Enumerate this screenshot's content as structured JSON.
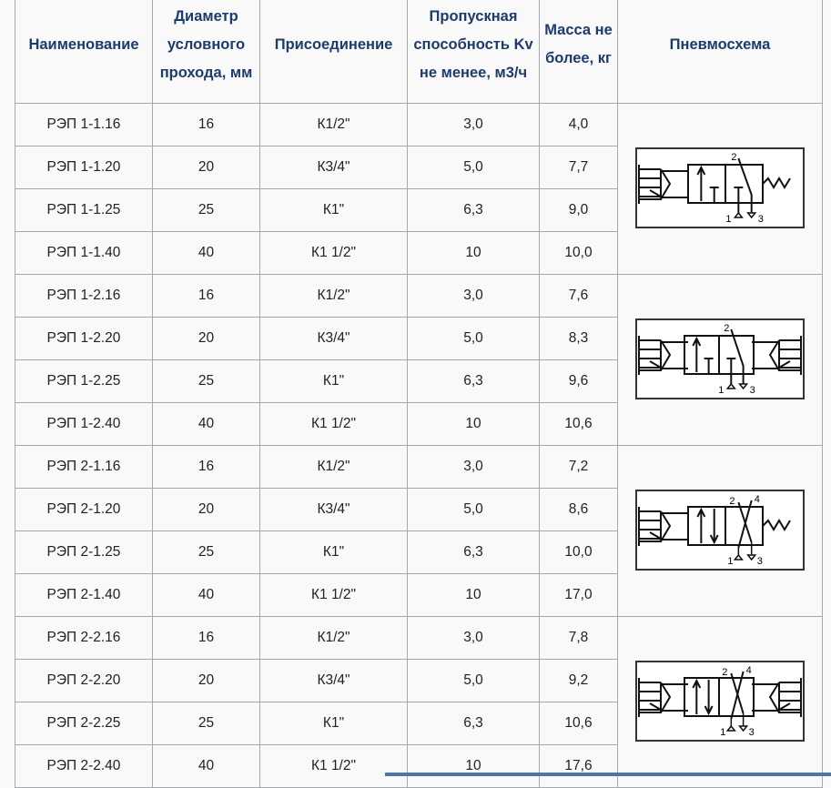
{
  "headers": [
    "Наименование",
    "Диаметр условного прохода, мм",
    "Присоединение",
    "Пропускная способность Kv не менее, м3/ч",
    "Масса не более, кг",
    "Пневмосхема"
  ],
  "rows": [
    [
      "РЭП 1-1.16",
      "16",
      "К1/2\"",
      "3,0",
      "4,0"
    ],
    [
      "РЭП 1-1.20",
      "20",
      "К3/4\"",
      "5,0",
      "7,7"
    ],
    [
      "РЭП 1-1.25",
      "25",
      "К1\"",
      "6,3",
      "9,0"
    ],
    [
      "РЭП 1-1.40",
      "40",
      "К1 1/2\"",
      "10",
      "10,0"
    ],
    [
      "РЭП 1-2.16",
      "16",
      "К1/2\"",
      "3,0",
      "7,6"
    ],
    [
      "РЭП 1-2.20",
      "20",
      "К3/4\"",
      "5,0",
      "8,3"
    ],
    [
      "РЭП 1-2.25",
      "25",
      "К1\"",
      "6,3",
      "9,6"
    ],
    [
      "РЭП 1-2.40",
      "40",
      "К1 1/2\"",
      "10",
      "10,6"
    ],
    [
      "РЭП 2-1.16",
      "16",
      "К1/2\"",
      "3,0",
      "7,2"
    ],
    [
      "РЭП 2-1.20",
      "20",
      "К3/4\"",
      "5,0",
      "8,6"
    ],
    [
      "РЭП 2-1.25",
      "25",
      "К1\"",
      "6,3",
      "10,0"
    ],
    [
      "РЭП 2-1.40",
      "40",
      "К1 1/2\"",
      "10",
      "17,0"
    ],
    [
      "РЭП 2-2.16",
      "16",
      "К1/2\"",
      "3,0",
      "7,8"
    ],
    [
      "РЭП 2-2.20",
      "20",
      "К3/4\"",
      "5,0",
      "9,2"
    ],
    [
      "РЭП 2-2.25",
      "25",
      "К1\"",
      "6,3",
      "10,6"
    ],
    [
      "РЭП 2-2.40",
      "40",
      "К1 1/2\"",
      "10",
      "17,6"
    ]
  ],
  "schemes": [
    {
      "type": "3/2-spring",
      "ports": [
        "2",
        "1",
        "3"
      ]
    },
    {
      "type": "3/2-lever-both",
      "ports": [
        "2",
        "1",
        "3"
      ]
    },
    {
      "type": "4/2-spring",
      "ports": [
        "2",
        "4",
        "1",
        "3"
      ]
    },
    {
      "type": "4/2-lever-both",
      "ports": [
        "2",
        "4",
        "1",
        "3"
      ]
    }
  ],
  "colors": {
    "header_text": "#1d3b6b",
    "border": "#a2a9b1",
    "bar": "#4a78a6"
  }
}
